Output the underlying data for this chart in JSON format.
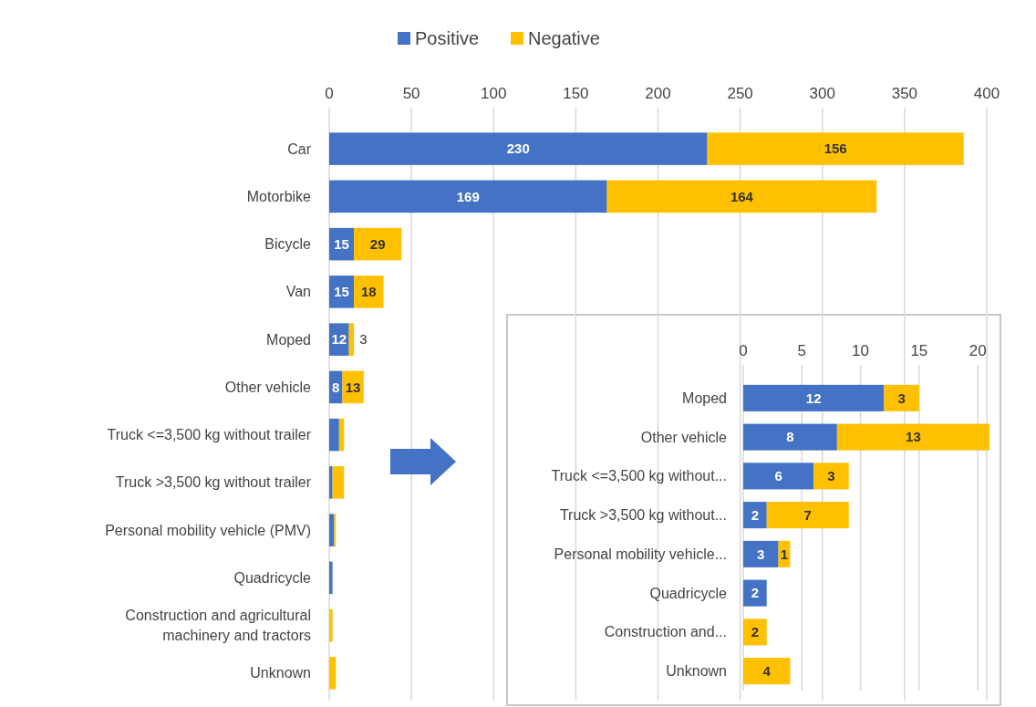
{
  "chart_data": [
    {
      "type": "bar",
      "orientation": "horizontal",
      "stacked": true,
      "legend": "top",
      "grid": "x",
      "categories": [
        "Car",
        "Motorbike",
        "Bicycle",
        "Van",
        "Moped",
        "Other vehicle",
        "Truck <=3,500 kg without trailer",
        "Truck >3,500 kg without trailer",
        "Personal mobility vehicle (PMV)",
        "Quadricycle",
        "Construction and agricultural machinery and tractors",
        "Unknown"
      ],
      "series": [
        {
          "name": "Positive",
          "color": "#4472c4",
          "values": [
            230,
            169,
            15,
            15,
            12,
            8,
            6,
            2,
            3,
            2,
            null,
            null
          ],
          "value_labels": [
            "230",
            "169",
            "15",
            "15",
            "12",
            "8",
            null,
            null,
            null,
            null,
            null,
            null
          ]
        },
        {
          "name": "Negative",
          "color": "#ffc000",
          "values": [
            156,
            164,
            29,
            18,
            3,
            13,
            3,
            7,
            1,
            null,
            2,
            4
          ],
          "value_labels": [
            "156",
            "164",
            "29",
            "18",
            "3",
            "13",
            null,
            null,
            null,
            null,
            null,
            null
          ]
        }
      ],
      "xlim": [
        0,
        400
      ],
      "xticks": [
        0,
        50,
        100,
        150,
        200,
        250,
        300,
        350,
        400
      ]
    },
    {
      "type": "bar",
      "orientation": "horizontal",
      "stacked": true,
      "grid": "x",
      "data_labels": true,
      "categories": [
        "Moped",
        "Other vehicle",
        "Truck <=3,500 kg without...",
        "Truck >3,500 kg without...",
        "Personal mobility vehicle...",
        "Quadricycle",
        "Construction and...",
        "Unknown"
      ],
      "series": [
        {
          "color": "#4472c4",
          "values": [
            12,
            8,
            6,
            2,
            3,
            2,
            null,
            null
          ]
        },
        {
          "color": "#ffc000",
          "values": [
            3,
            13,
            3,
            7,
            1,
            null,
            2,
            4
          ]
        }
      ],
      "xlim": [
        0,
        21
      ],
      "xticks": [
        0,
        5,
        10,
        15,
        20
      ]
    }
  ]
}
